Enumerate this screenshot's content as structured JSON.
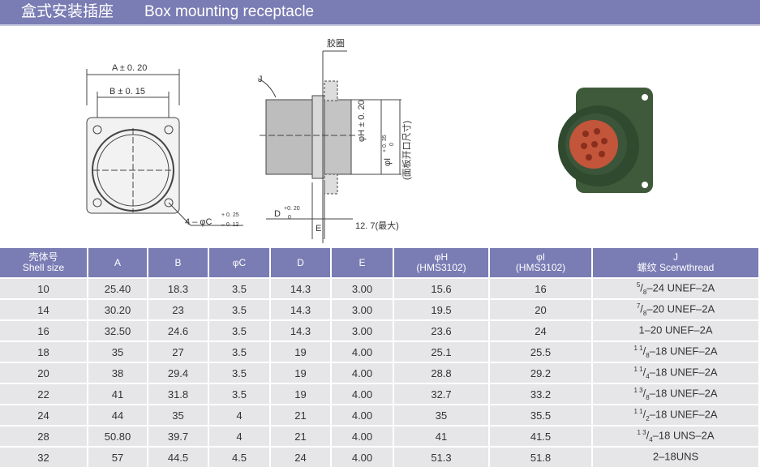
{
  "banner": {
    "title_cn": "盒式安装插座",
    "title_en": "Box mounting receptacle"
  },
  "drawing": {
    "a": "A ± 0. 20",
    "b": "B ± 0. 15",
    "c": "4 – φC",
    "c_tol_up": "+ 0. 25",
    "c_tol_dn": "– 0. 12",
    "gasket": "胶圈",
    "j": "J",
    "h": "φH ± 0. 20",
    "i": "φI",
    "i_tol_up": "+ 0. 35",
    "i_tol_dn": "0",
    "panel": "(面板开口尺寸)",
    "d": "D",
    "d_tol_up": "+0. 20",
    "d_tol_dn": "0",
    "e": "E",
    "max": "12. 7(最大)"
  },
  "table": {
    "headers": [
      [
        "壳体号",
        "Shell size"
      ],
      [
        "A",
        ""
      ],
      [
        "B",
        ""
      ],
      [
        "φC",
        ""
      ],
      [
        "D",
        ""
      ],
      [
        "E",
        ""
      ],
      [
        "φH",
        "(HMS3102)"
      ],
      [
        "φI",
        "(HMS3102)"
      ],
      [
        "J",
        "螺纹  Scerwthread"
      ]
    ],
    "rows": [
      [
        "10",
        "25.40",
        "18.3",
        "3.5",
        "14.3",
        "3.00",
        "15.6",
        "16",
        [
          "5",
          "8",
          "–24 UNEF–2A"
        ]
      ],
      [
        "14",
        "30.20",
        "23",
        "3.5",
        "14.3",
        "3.00",
        "19.5",
        "20",
        [
          "7",
          "8",
          "–20 UNEF–2A"
        ]
      ],
      [
        "16",
        "32.50",
        "24.6",
        "3.5",
        "14.3",
        "3.00",
        "23.6",
        "24",
        [
          "",
          "",
          "1–20 UNEF–2A"
        ]
      ],
      [
        "18",
        "35",
        "27",
        "3.5",
        "19",
        "4.00",
        "25.1",
        "25.5",
        [
          "1 1",
          "8",
          "–18 UNEF–2A"
        ]
      ],
      [
        "20",
        "38",
        "29.4",
        "3.5",
        "19",
        "4.00",
        "28.8",
        "29.2",
        [
          "1 1",
          "4",
          "–18 UNEF–2A"
        ]
      ],
      [
        "22",
        "41",
        "31.8",
        "3.5",
        "19",
        "4.00",
        "32.7",
        "33.2",
        [
          "1 3",
          "8",
          "–18 UNEF–2A"
        ]
      ],
      [
        "24",
        "44",
        "35",
        "4",
        "21",
        "4.00",
        "35",
        "35.5",
        [
          "1 1",
          "2",
          "–18 UNEF–2A"
        ]
      ],
      [
        "28",
        "50.80",
        "39.7",
        "4",
        "21",
        "4.00",
        "41",
        "41.5",
        [
          "1 3",
          "4",
          "–18 UNS–2A"
        ]
      ],
      [
        "32",
        "57",
        "44.5",
        "4.5",
        "24",
        "4.00",
        "51.3",
        "51.8",
        [
          "",
          "",
          "2–18UNS"
        ]
      ]
    ]
  }
}
